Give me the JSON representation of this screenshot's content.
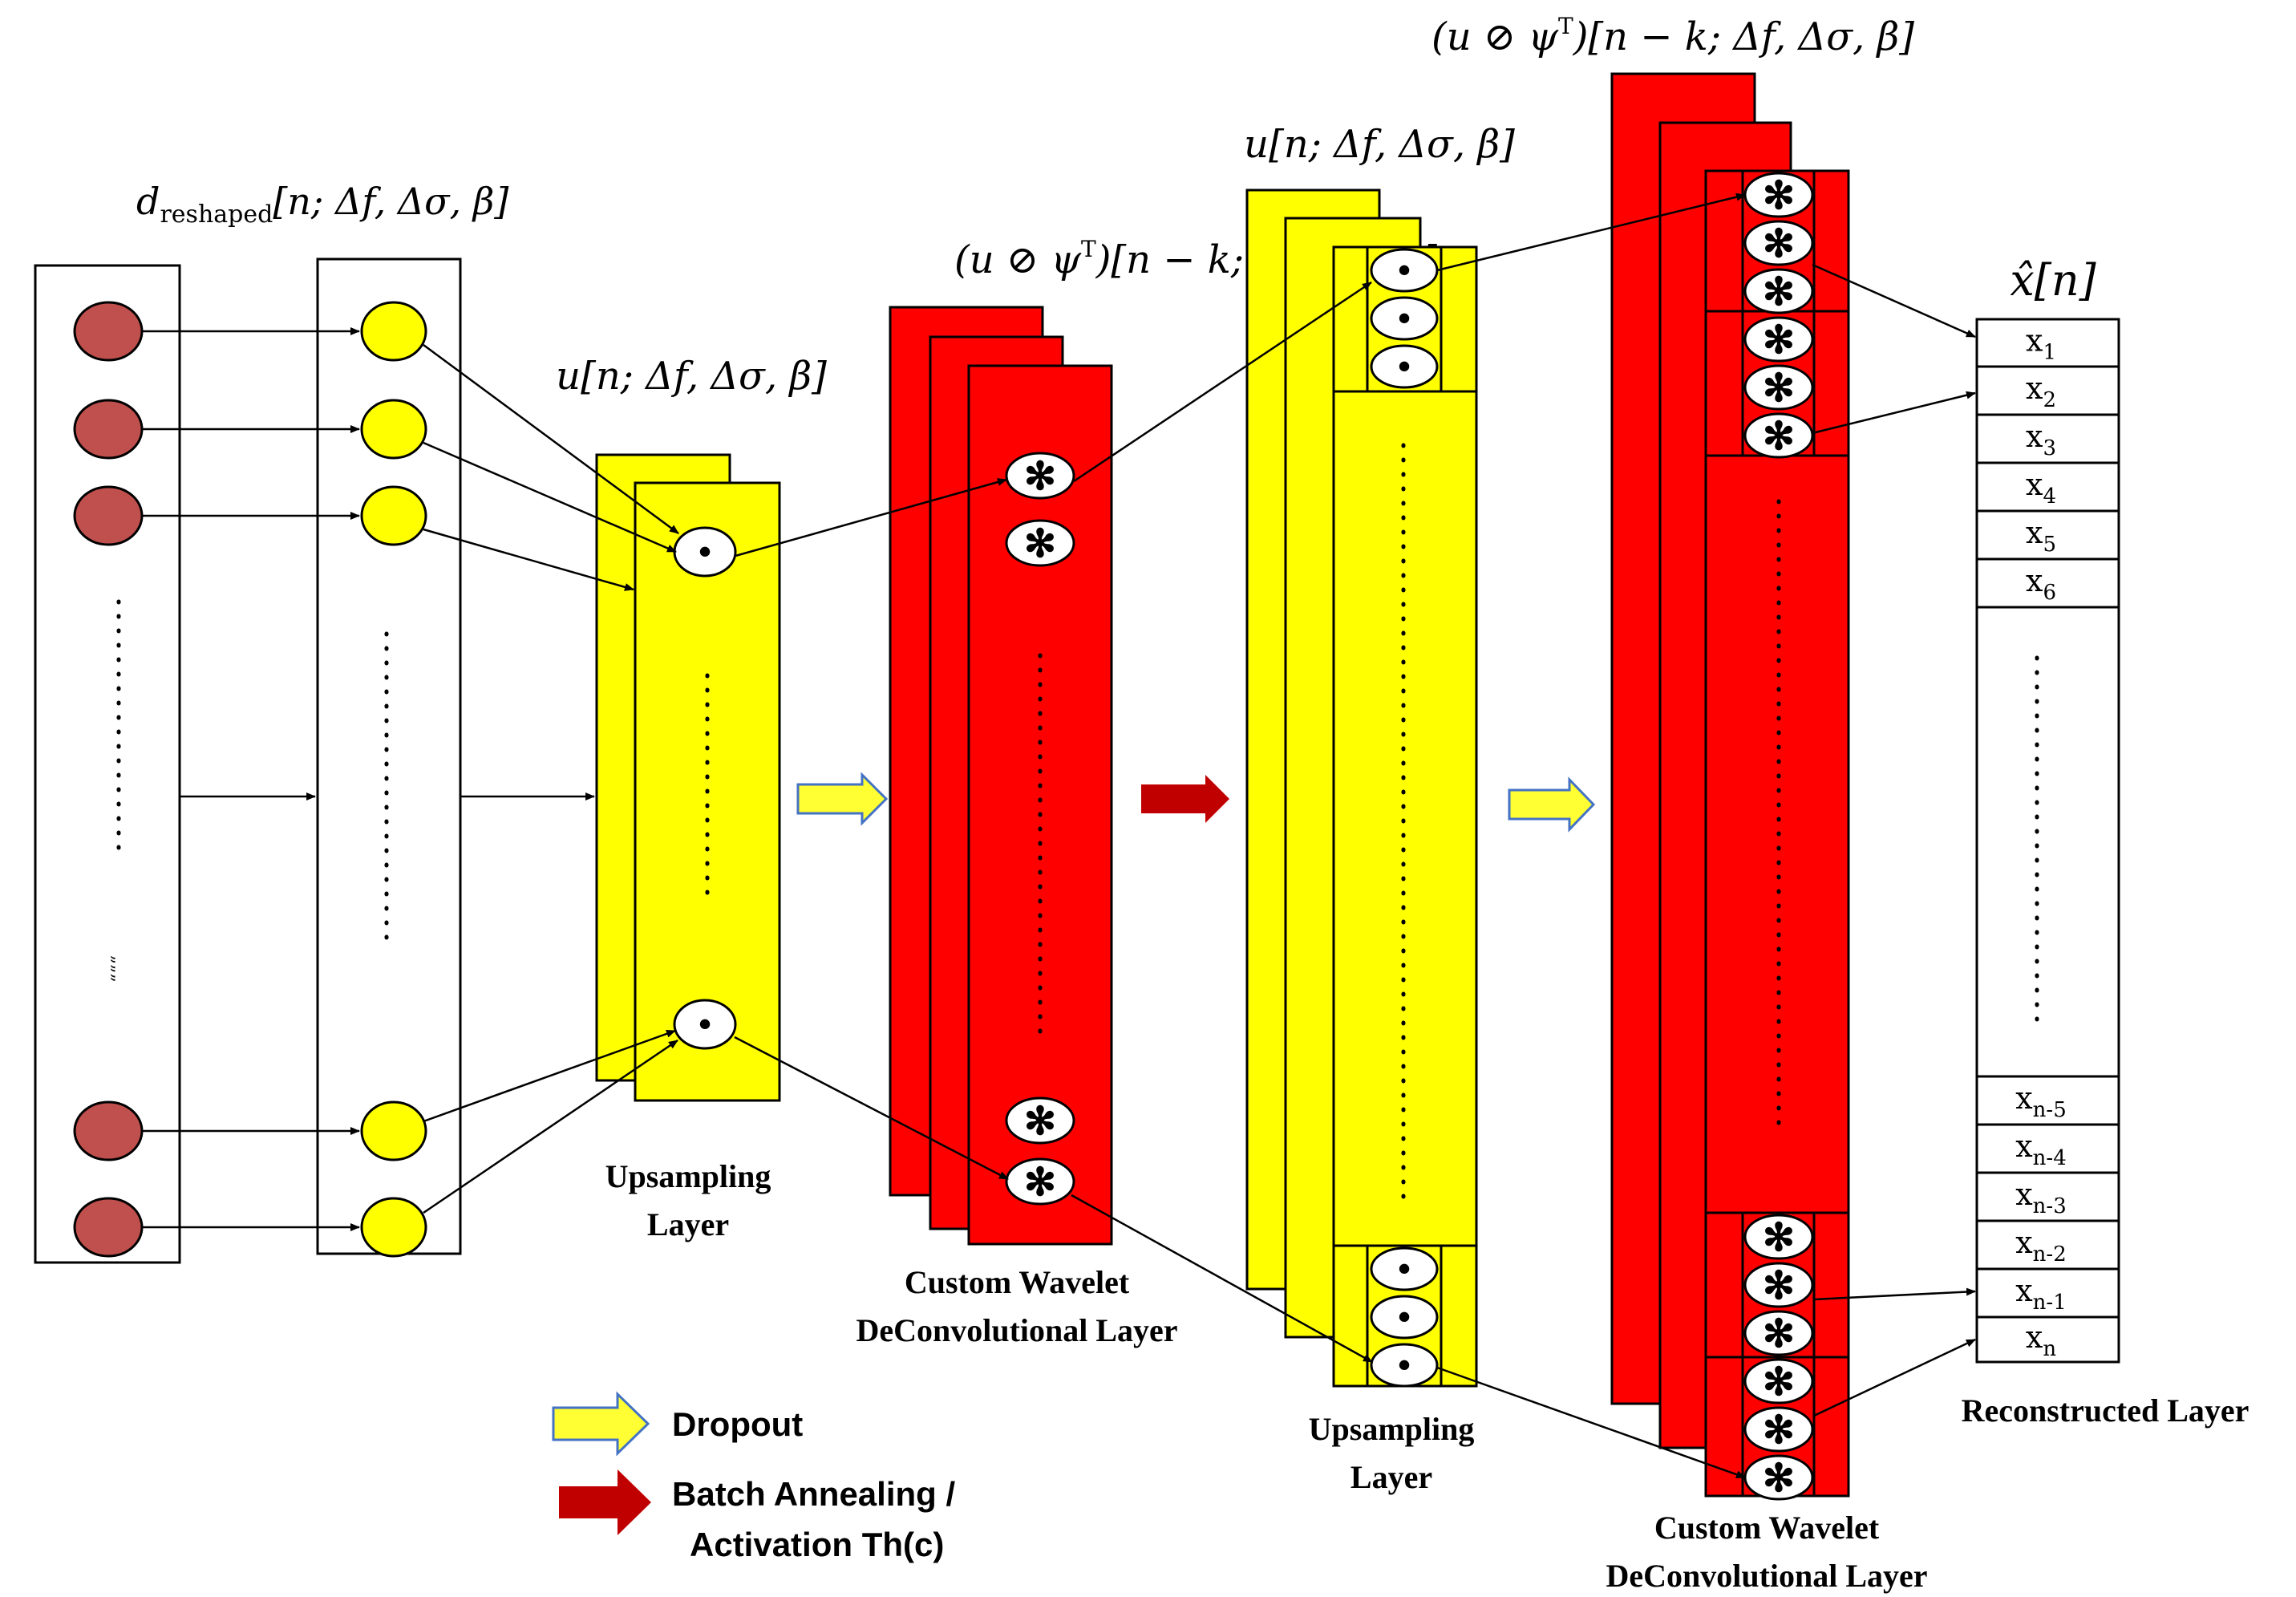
{
  "labels": {
    "d_reshaped": {
      "main": "d",
      "sub": "reshaped",
      "args": "[n; Δf, Δσ, β]"
    },
    "u_layer1": "u[n; Δf, Δσ, β]",
    "uconv_layer1": {
      "pre": "(u ⊘ ψ",
      "sup": "T",
      "post": ")[n − k; Δf, Δσ, β]"
    },
    "u_layer2": "u[n; Δf, Δσ, β]",
    "uconv_layer2": {
      "pre": "(u ⊘ ψ",
      "sup": "T",
      "post": ")[n − k; Δf, Δσ, β]"
    },
    "xhat": "x̂[n]"
  },
  "layers": {
    "upsampling1": [
      "Upsampling",
      "Layer"
    ],
    "wavelet1": [
      "Custom Wavelet",
      "DeConvolutional Layer"
    ],
    "upsampling2": [
      "Upsampling",
      "Layer"
    ],
    "wavelet2": [
      "Custom Wavelet",
      "DeConvolutional Layer"
    ],
    "reconstructed": "Reconstructed Layer"
  },
  "output_cells": [
    {
      "base": "x",
      "sub": "1"
    },
    {
      "base": "x",
      "sub": "2"
    },
    {
      "base": "x",
      "sub": "3"
    },
    {
      "base": "x",
      "sub": "4"
    },
    {
      "base": "x",
      "sub": "5"
    },
    {
      "base": "x",
      "sub": "6"
    },
    {
      "base": "x",
      "sub": "n-5"
    },
    {
      "base": "x",
      "sub": "n-4"
    },
    {
      "base": "x",
      "sub": "n-3"
    },
    {
      "base": "x",
      "sub": "n-2"
    },
    {
      "base": "x",
      "sub": "n-1"
    },
    {
      "base": "x",
      "sub": "n"
    }
  ],
  "symbols": {
    "upsample_node": "•",
    "deconv_node": "✻",
    "ellipsis_mark": "„„„"
  },
  "legend": {
    "dropout": "Dropout",
    "batch_line1": "Batch Annealing /",
    "batch_line2": "Activation Th(c)"
  },
  "colors": {
    "input_node": "#c0504d",
    "upsampling": "#ffff00",
    "wavelet": "#ff0000",
    "dropout_arrow": "#ffff33",
    "batch_arrow": "#c00000",
    "line": "#000000"
  }
}
